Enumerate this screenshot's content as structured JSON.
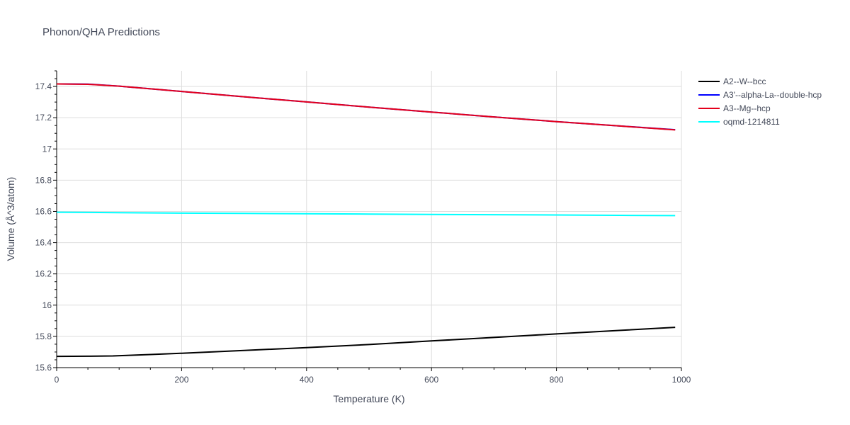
{
  "chart_data": {
    "type": "line",
    "title": "Phonon/QHA Predictions",
    "xlabel": "Temperature (K)",
    "ylabel": "Volume (Å^3/atom)",
    "xlim": [
      0,
      1000
    ],
    "ylim": [
      15.6,
      17.5
    ],
    "xticks": [
      0,
      200,
      400,
      600,
      800,
      1000
    ],
    "xtick_labels": [
      "0",
      "200",
      "400",
      "600",
      "800",
      "1000"
    ],
    "yticks": [
      15.6,
      15.8,
      16.0,
      16.2,
      16.4,
      16.6,
      16.8,
      17.0,
      17.2,
      17.4
    ],
    "ytick_labels": [
      "15.6",
      "15.8",
      "16",
      "16.2",
      "16.4",
      "16.6",
      "16.8",
      "17",
      "17.2",
      "17.4"
    ],
    "grid": true,
    "legend_position": "top-right-outside",
    "series": [
      {
        "name": "A2--W--bcc",
        "color": "#000000",
        "x": [
          0,
          50,
          90,
          150,
          200,
          300,
          400,
          500,
          600,
          700,
          800,
          900,
          990
        ],
        "y": [
          15.672,
          15.673,
          15.675,
          15.684,
          15.692,
          15.71,
          15.728,
          15.748,
          15.771,
          15.793,
          15.816,
          15.838,
          15.858
        ]
      },
      {
        "name": "A3'--alpha-La--double-hcp",
        "color": "#0000ff",
        "x": [
          0,
          50,
          100,
          200,
          300,
          400,
          500,
          600,
          700,
          800,
          900,
          990
        ],
        "y": [
          17.416,
          17.415,
          17.402,
          17.368,
          17.334,
          17.301,
          17.268,
          17.236,
          17.205,
          17.175,
          17.147,
          17.123
        ]
      },
      {
        "name": "A3--Mg--hcp",
        "color": "#e4001b",
        "x": [
          0,
          50,
          100,
          200,
          300,
          400,
          500,
          600,
          700,
          800,
          900,
          990
        ],
        "y": [
          17.416,
          17.414,
          17.402,
          17.368,
          17.334,
          17.301,
          17.268,
          17.236,
          17.205,
          17.175,
          17.147,
          17.122
        ]
      },
      {
        "name": "oqmd-1214811",
        "color": "#00ffff",
        "x": [
          0,
          100,
          200,
          300,
          400,
          500,
          600,
          700,
          800,
          900,
          990
        ],
        "y": [
          16.595,
          16.592,
          16.589,
          16.587,
          16.585,
          16.583,
          16.581,
          16.579,
          16.577,
          16.575,
          16.573
        ]
      }
    ]
  }
}
